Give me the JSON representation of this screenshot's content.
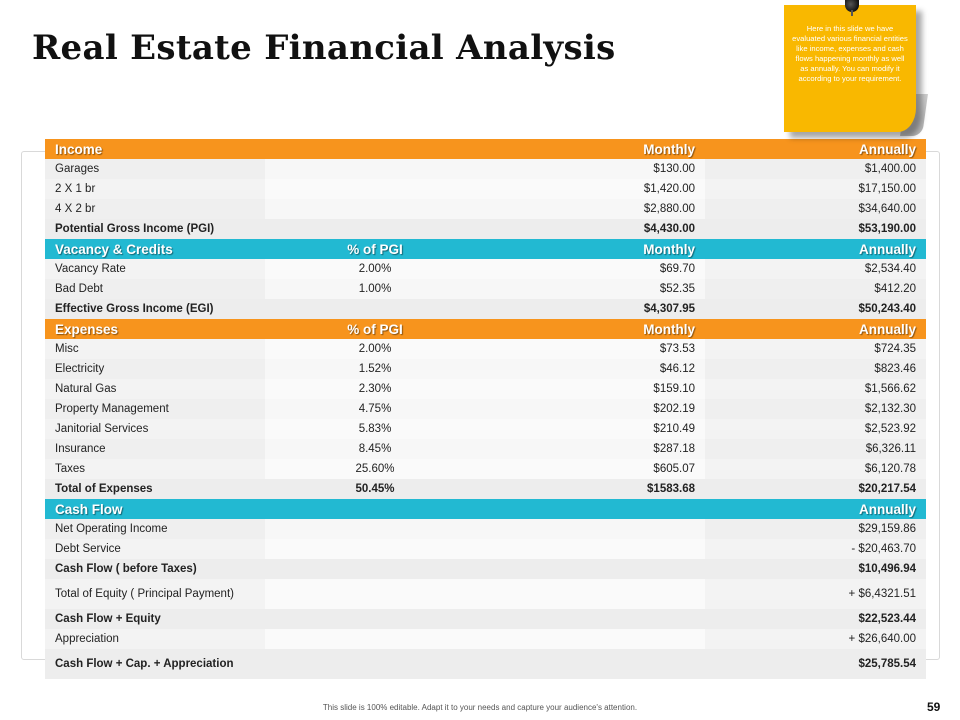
{
  "title": "Real Estate Financial Analysis",
  "sticky_note": "Here in this slide we have evaluated various financial entities like income, expenses and cash flows happening monthly as well as annually. You can modify it according to your requirement.",
  "income": {
    "header": [
      "Income",
      "",
      "Monthly",
      "Annually"
    ],
    "rows": [
      [
        "Garages",
        "",
        "$130.00",
        "$1,400.00"
      ],
      [
        "2 X 1 br",
        "",
        "$1,420.00",
        "$17,150.00"
      ],
      [
        "4 X 2 br",
        "",
        "$2,880.00",
        "$34,640.00"
      ]
    ],
    "total": [
      "Potential Gross Income (PGI)",
      "",
      "$4,430.00",
      "$53,190.00"
    ]
  },
  "vacancy": {
    "header": [
      "Vacancy & Credits",
      "% of PGI",
      "Monthly",
      "Annually"
    ],
    "rows": [
      [
        "Vacancy Rate",
        "2.00%",
        "$69.70",
        "$2,534.40"
      ],
      [
        "Bad Debt",
        "1.00%",
        "$52.35",
        "$412.20"
      ]
    ],
    "total": [
      "Effective Gross Income (EGI)",
      "",
      "$4,307.95",
      "$50,243.40"
    ]
  },
  "expenses": {
    "header": [
      "Expenses",
      "% of PGI",
      "Monthly",
      "Annually"
    ],
    "rows": [
      [
        "Misc",
        "2.00%",
        "$73.53",
        "$724.35"
      ],
      [
        "Electricity",
        "1.52%",
        "$46.12",
        "$823.46"
      ],
      [
        "Natural Gas",
        "2.30%",
        "$159.10",
        "$1,566.62"
      ],
      [
        "Property Management",
        "4.75%",
        "$202.19",
        "$2,132.30"
      ],
      [
        "Janitorial Services",
        "5.83%",
        "$210.49",
        "$2,523.92"
      ],
      [
        "Insurance",
        "8.45%",
        "$287.18",
        "$6,326.11"
      ],
      [
        "Taxes",
        "25.60%",
        "$605.07",
        "$6,120.78"
      ]
    ],
    "total": [
      "Total of Expenses",
      "50.45%",
      "$1583.68",
      "$20,217.54"
    ]
  },
  "cashflow": {
    "header": [
      "Cash Flow",
      "",
      "",
      "Annually"
    ],
    "rows": [
      [
        "Net Operating Income",
        "$29,159.86",
        "data"
      ],
      [
        "Debt Service",
        "- $20,463.70",
        "data"
      ],
      [
        "Cash Flow ( before Taxes)",
        "$10,496.94",
        "total"
      ],
      [
        "Total of Equity ( Principal Payment)",
        "+ $6,4321.51",
        "data-tall"
      ],
      [
        "Cash Flow + Equity",
        "$22,523.44",
        "total"
      ],
      [
        "Appreciation",
        "+ $26,640.00",
        "data"
      ],
      [
        "Cash Flow + Cap. + Appreciation",
        "$25,785.54",
        "total-tall"
      ]
    ]
  },
  "footer": "This slide is 100% editable. Adapt it to your needs and capture your audience's attention.",
  "page_number": "59",
  "colors": {
    "orange": "#f7941d",
    "teal": "#22b9d2",
    "sticky": "#f9b800"
  }
}
